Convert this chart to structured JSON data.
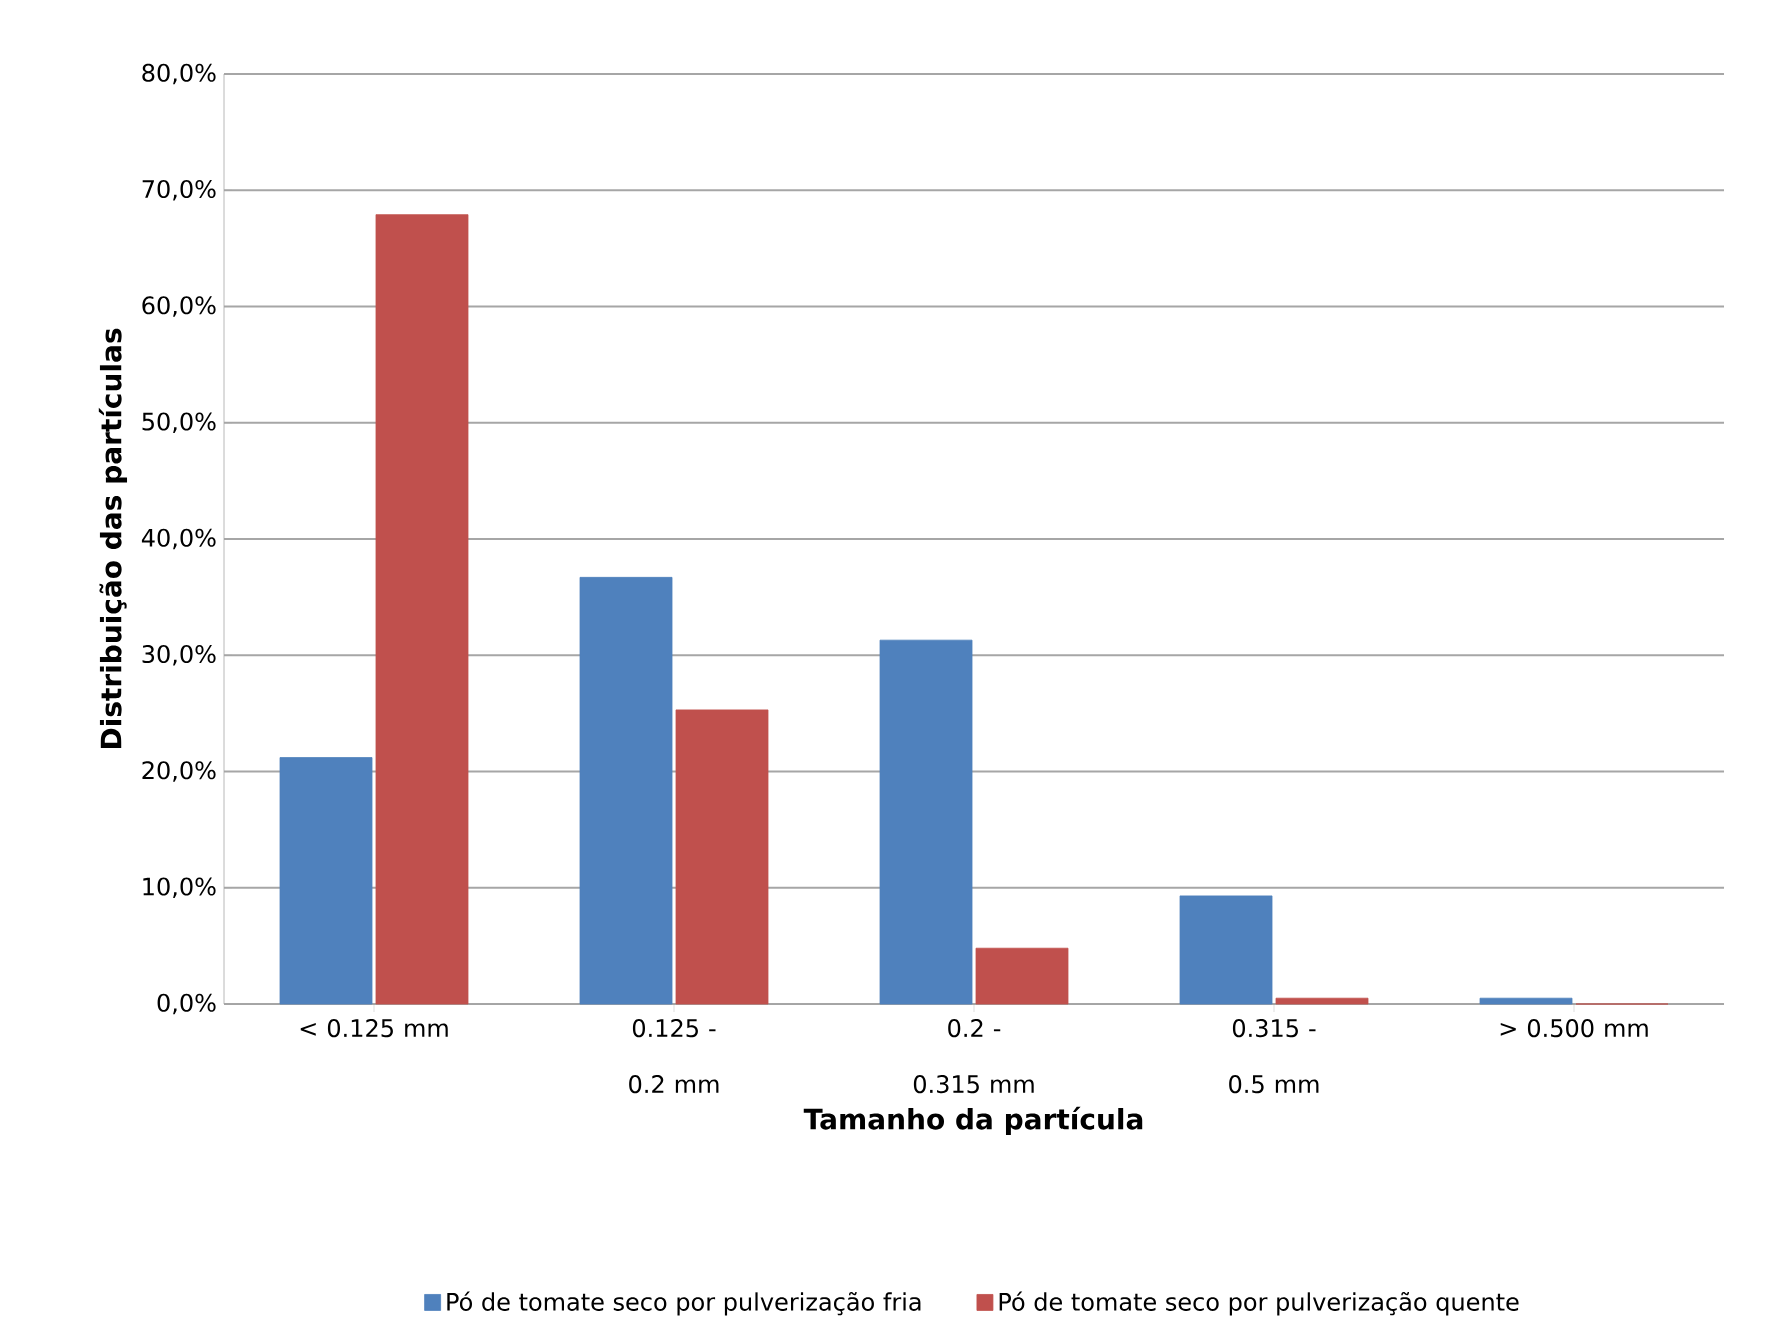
{
  "chart_data": {
    "type": "bar",
    "xlabel": "Tamanho da partícula",
    "ylabel": "Distribuição  das partículas",
    "categories": [
      "< 0.125 mm",
      "0.125 - 0.2 mm",
      "0.2 - 0.315 mm",
      "0.315 - 0.5 mm",
      "> 0.500 mm"
    ],
    "series": [
      {
        "name": "Pó de tomate seco por pulverização fria",
        "color": "#4f81bd",
        "values": [
          21.2,
          36.7,
          31.3,
          9.3,
          0.5
        ]
      },
      {
        "name": "Pó de tomate seco por pulverização quente",
        "color": "#c0504d",
        "values": [
          67.9,
          25.3,
          4.8,
          0.5,
          0
        ]
      }
    ],
    "ylim": [
      0,
      80
    ],
    "yticks": [
      {
        "value": 0,
        "label": "0,0%"
      },
      {
        "value": 10,
        "label": "10,0%"
      },
      {
        "value": 20,
        "label": "20,0%"
      },
      {
        "value": 30,
        "label": "30,0%"
      },
      {
        "value": 40,
        "label": "40,0%"
      },
      {
        "value": 50,
        "label": "50,0%"
      },
      {
        "value": 60,
        "label": "60,0%"
      },
      {
        "value": 70,
        "label": "70,0%"
      },
      {
        "value": 80,
        "label": "80,0%"
      }
    ],
    "grid": "y",
    "legend": "bottom"
  }
}
